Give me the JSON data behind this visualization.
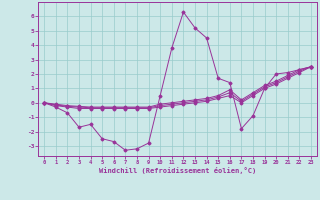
{
  "xlabel": "Windchill (Refroidissement éolien,°C)",
  "bg_color": "#cce8e8",
  "line_color": "#993399",
  "grid_color": "#99cccc",
  "xlim": [
    -0.5,
    23.5
  ],
  "ylim": [
    -3.7,
    7.0
  ],
  "yticks": [
    -3,
    -2,
    -1,
    0,
    1,
    2,
    3,
    4,
    5,
    6
  ],
  "xticks": [
    0,
    1,
    2,
    3,
    4,
    5,
    6,
    7,
    8,
    9,
    10,
    11,
    12,
    13,
    14,
    15,
    16,
    17,
    18,
    19,
    20,
    21,
    22,
    23
  ],
  "series": [
    {
      "x": [
        0,
        1,
        2,
        3,
        4,
        5,
        6,
        7,
        8,
        9,
        10,
        11,
        12,
        13,
        14,
        15,
        16,
        17,
        18,
        19,
        20,
        21,
        22,
        23
      ],
      "y": [
        0.0,
        -0.3,
        -0.7,
        -1.7,
        -1.5,
        -2.5,
        -2.7,
        -3.3,
        -3.2,
        -2.8,
        0.5,
        3.8,
        6.3,
        5.2,
        4.5,
        1.7,
        1.4,
        -1.8,
        -0.9,
        1.0,
        2.0,
        2.1,
        2.3,
        2.5
      ]
    },
    {
      "x": [
        0,
        1,
        2,
        3,
        4,
        5,
        6,
        7,
        8,
        9,
        10,
        11,
        12,
        13,
        14,
        15,
        16,
        17,
        18,
        19,
        20,
        21,
        22,
        23
      ],
      "y": [
        0.0,
        -0.2,
        -0.3,
        -0.4,
        -0.4,
        -0.4,
        -0.4,
        -0.4,
        -0.4,
        -0.4,
        -0.3,
        -0.2,
        -0.1,
        0.0,
        0.1,
        0.3,
        0.5,
        0.0,
        0.5,
        1.0,
        1.3,
        1.7,
        2.1,
        2.5
      ]
    },
    {
      "x": [
        0,
        1,
        2,
        3,
        4,
        5,
        6,
        7,
        8,
        9,
        10,
        11,
        12,
        13,
        14,
        15,
        16,
        17,
        18,
        19,
        20,
        21,
        22,
        23
      ],
      "y": [
        0.0,
        -0.15,
        -0.25,
        -0.3,
        -0.35,
        -0.35,
        -0.35,
        -0.35,
        -0.35,
        -0.35,
        -0.2,
        -0.1,
        0.0,
        0.1,
        0.2,
        0.4,
        0.7,
        0.1,
        0.6,
        1.1,
        1.4,
        1.8,
        2.2,
        2.5
      ]
    },
    {
      "x": [
        0,
        1,
        2,
        3,
        4,
        5,
        6,
        7,
        8,
        9,
        10,
        11,
        12,
        13,
        14,
        15,
        16,
        17,
        18,
        19,
        20,
        21,
        22,
        23
      ],
      "y": [
        0.0,
        -0.1,
        -0.2,
        -0.25,
        -0.3,
        -0.3,
        -0.3,
        -0.3,
        -0.3,
        -0.3,
        -0.1,
        0.0,
        0.1,
        0.2,
        0.3,
        0.5,
        0.9,
        0.2,
        0.7,
        1.2,
        1.5,
        1.9,
        2.3,
        2.5
      ]
    }
  ]
}
